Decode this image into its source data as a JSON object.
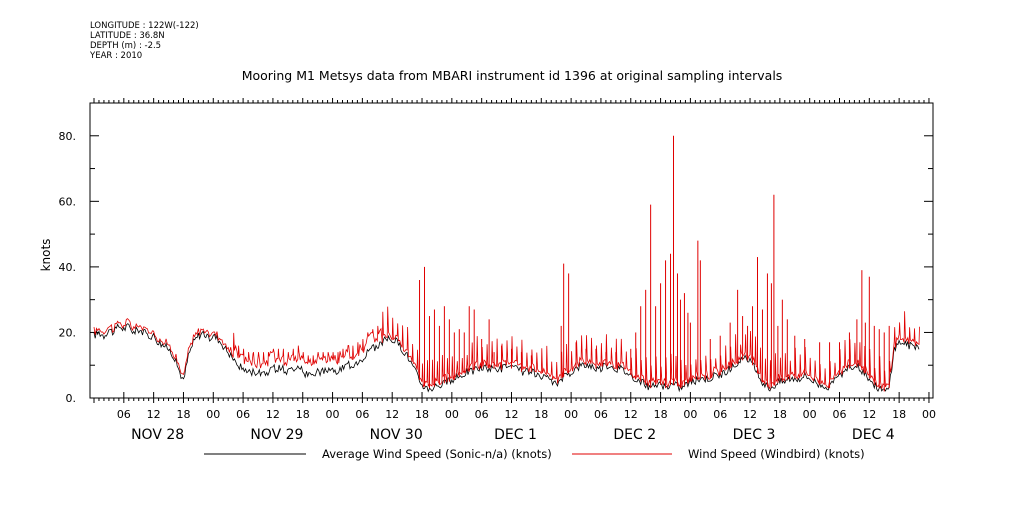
{
  "header": {
    "longitude": "LONGITUDE : 122W(-122)",
    "latitude": "LATITUDE : 36.8N",
    "depth": "DEPTH (m) : -2.5",
    "year": "YEAR : 2010"
  },
  "chart_data": {
    "type": "line",
    "title": "Mooring M1 Metsys data from MBARI instrument id 1396 at original sampling intervals",
    "ylabel": "knots",
    "xlabel": "",
    "ylim": [
      0,
      90
    ],
    "xlim_hours": [
      0,
      166
    ],
    "yticks": [
      {
        "value": 0,
        "label": "0."
      },
      {
        "value": 20,
        "label": "20."
      },
      {
        "value": 40,
        "label": "40."
      },
      {
        "value": 60,
        "label": "60."
      },
      {
        "value": 80,
        "label": "80."
      }
    ],
    "hour_ticks": [
      {
        "t": 6,
        "label": "06"
      },
      {
        "t": 12,
        "label": "12"
      },
      {
        "t": 18,
        "label": "18"
      },
      {
        "t": 24,
        "label": "00"
      },
      {
        "t": 30,
        "label": "06"
      },
      {
        "t": 36,
        "label": "12"
      },
      {
        "t": 42,
        "label": "18"
      },
      {
        "t": 48,
        "label": "00"
      },
      {
        "t": 54,
        "label": "06"
      },
      {
        "t": 60,
        "label": "12"
      },
      {
        "t": 66,
        "label": "18"
      },
      {
        "t": 72,
        "label": "00"
      },
      {
        "t": 78,
        "label": "06"
      },
      {
        "t": 84,
        "label": "12"
      },
      {
        "t": 90,
        "label": "18"
      },
      {
        "t": 96,
        "label": "00"
      },
      {
        "t": 102,
        "label": "06"
      },
      {
        "t": 108,
        "label": "12"
      },
      {
        "t": 114,
        "label": "18"
      },
      {
        "t": 120,
        "label": "00"
      },
      {
        "t": 126,
        "label": "06"
      },
      {
        "t": 132,
        "label": "12"
      },
      {
        "t": 138,
        "label": "18"
      },
      {
        "t": 144,
        "label": "00"
      },
      {
        "t": 150,
        "label": "06"
      },
      {
        "t": 156,
        "label": "12"
      },
      {
        "t": 162,
        "label": "18"
      },
      {
        "t": 168,
        "label": "00"
      }
    ],
    "day_labels": [
      {
        "t": 12,
        "label": "NOV 28"
      },
      {
        "t": 36,
        "label": "NOV 29"
      },
      {
        "t": 60,
        "label": "NOV 30"
      },
      {
        "t": 84,
        "label": "DEC  1"
      },
      {
        "t": 108,
        "label": "DEC  2"
      },
      {
        "t": 132,
        "label": "DEC  3"
      },
      {
        "t": 156,
        "label": "DEC  4"
      }
    ],
    "series": [
      {
        "name": "Average Wind Speed (Sonic-n/a) (knots)",
        "color": "#000000",
        "baseline_knots": [
          [
            0,
            19
          ],
          [
            1,
            20
          ],
          [
            2,
            19
          ],
          [
            3,
            21
          ],
          [
            4,
            20
          ],
          [
            5,
            22
          ],
          [
            6,
            21
          ],
          [
            7,
            22
          ],
          [
            8,
            20
          ],
          [
            9,
            21
          ],
          [
            10,
            20
          ],
          [
            11,
            19
          ],
          [
            12,
            19
          ],
          [
            13,
            17
          ],
          [
            14,
            16
          ],
          [
            15,
            15
          ],
          [
            16,
            13
          ],
          [
            17,
            9
          ],
          [
            18,
            5
          ],
          [
            19,
            13
          ],
          [
            20,
            17
          ],
          [
            21,
            19
          ],
          [
            22,
            20
          ],
          [
            23,
            18
          ],
          [
            24,
            19
          ],
          [
            25,
            18
          ],
          [
            26,
            16
          ],
          [
            27,
            14
          ],
          [
            28,
            12
          ],
          [
            29,
            10
          ],
          [
            30,
            9
          ],
          [
            31,
            8
          ],
          [
            32,
            8
          ],
          [
            33,
            8
          ],
          [
            34,
            8
          ],
          [
            35,
            8
          ],
          [
            36,
            9
          ],
          [
            37,
            9
          ],
          [
            38,
            9
          ],
          [
            39,
            8
          ],
          [
            40,
            9
          ],
          [
            41,
            10
          ],
          [
            42,
            8
          ],
          [
            43,
            7
          ],
          [
            44,
            7
          ],
          [
            45,
            8
          ],
          [
            46,
            8
          ],
          [
            47,
            8
          ],
          [
            48,
            8
          ],
          [
            49,
            8
          ],
          [
            50,
            9
          ],
          [
            51,
            10
          ],
          [
            52,
            10
          ],
          [
            53,
            11
          ],
          [
            54,
            12
          ],
          [
            55,
            14
          ],
          [
            56,
            15
          ],
          [
            57,
            16
          ],
          [
            58,
            17
          ],
          [
            59,
            18
          ],
          [
            60,
            18
          ],
          [
            61,
            17
          ],
          [
            62,
            15
          ],
          [
            63,
            13
          ],
          [
            64,
            10
          ],
          [
            65,
            7
          ],
          [
            66,
            4
          ],
          [
            67,
            3
          ],
          [
            68,
            3
          ],
          [
            69,
            4
          ],
          [
            70,
            4
          ],
          [
            71,
            5
          ],
          [
            72,
            5
          ],
          [
            73,
            6
          ],
          [
            74,
            7
          ],
          [
            75,
            8
          ],
          [
            76,
            8
          ],
          [
            77,
            9
          ],
          [
            78,
            9
          ],
          [
            79,
            9
          ],
          [
            80,
            9
          ],
          [
            81,
            9
          ],
          [
            82,
            9
          ],
          [
            83,
            10
          ],
          [
            84,
            9
          ],
          [
            85,
            9
          ],
          [
            86,
            8
          ],
          [
            87,
            8
          ],
          [
            88,
            8
          ],
          [
            89,
            7
          ],
          [
            90,
            6
          ],
          [
            91,
            6
          ],
          [
            92,
            5
          ],
          [
            93,
            4
          ],
          [
            94,
            6
          ],
          [
            95,
            7
          ],
          [
            96,
            8
          ],
          [
            97,
            9
          ],
          [
            98,
            10
          ],
          [
            99,
            10
          ],
          [
            100,
            10
          ],
          [
            101,
            9
          ],
          [
            102,
            9
          ],
          [
            103,
            10
          ],
          [
            104,
            10
          ],
          [
            105,
            9
          ],
          [
            106,
            9
          ],
          [
            107,
            8
          ],
          [
            108,
            7
          ],
          [
            109,
            6
          ],
          [
            110,
            5
          ],
          [
            111,
            4
          ],
          [
            112,
            3
          ],
          [
            113,
            4
          ],
          [
            114,
            4
          ],
          [
            115,
            3
          ],
          [
            116,
            4
          ],
          [
            117,
            4
          ],
          [
            118,
            3
          ],
          [
            119,
            4
          ],
          [
            120,
            5
          ],
          [
            121,
            5
          ],
          [
            122,
            6
          ],
          [
            123,
            6
          ],
          [
            124,
            6
          ],
          [
            125,
            7
          ],
          [
            126,
            7
          ],
          [
            127,
            8
          ],
          [
            128,
            9
          ],
          [
            129,
            10
          ],
          [
            130,
            11
          ],
          [
            131,
            12
          ],
          [
            132,
            11
          ],
          [
            133,
            9
          ],
          [
            134,
            6
          ],
          [
            135,
            4
          ],
          [
            136,
            3
          ],
          [
            137,
            4
          ],
          [
            138,
            5
          ],
          [
            139,
            5
          ],
          [
            140,
            6
          ],
          [
            141,
            6
          ],
          [
            142,
            6
          ],
          [
            143,
            7
          ],
          [
            144,
            6
          ],
          [
            145,
            5
          ],
          [
            146,
            4
          ],
          [
            147,
            4
          ],
          [
            148,
            3
          ],
          [
            149,
            5
          ],
          [
            150,
            7
          ],
          [
            151,
            8
          ],
          [
            152,
            9
          ],
          [
            153,
            10
          ],
          [
            154,
            9
          ],
          [
            155,
            8
          ],
          [
            156,
            6
          ],
          [
            157,
            4
          ],
          [
            158,
            3
          ],
          [
            159,
            2
          ],
          [
            160,
            3
          ],
          [
            161,
            15
          ],
          [
            162,
            17
          ],
          [
            163,
            17
          ],
          [
            164,
            16
          ],
          [
            165,
            16
          ]
        ]
      },
      {
        "name": "Wind Speed (Windbird) (knots)",
        "color": "#e00000",
        "spikes": [
          [
            65.5,
            36
          ],
          [
            66.5,
            40
          ],
          [
            67.5,
            25
          ],
          [
            68.5,
            27
          ],
          [
            69.5,
            22
          ],
          [
            70.5,
            28
          ],
          [
            71.5,
            24
          ],
          [
            72.5,
            20
          ],
          [
            73.5,
            21
          ],
          [
            74.5,
            20
          ],
          [
            75.5,
            28
          ],
          [
            76.5,
            27
          ],
          [
            78,
            18
          ],
          [
            79.5,
            24
          ],
          [
            80.5,
            14
          ],
          [
            82,
            16
          ],
          [
            84,
            15
          ],
          [
            86,
            14
          ],
          [
            88,
            13
          ],
          [
            94,
            22
          ],
          [
            94.5,
            41
          ],
          [
            95.5,
            38
          ],
          [
            97,
            17
          ],
          [
            99,
            15
          ],
          [
            101,
            15
          ],
          [
            103,
            14
          ],
          [
            105,
            14
          ],
          [
            108,
            15
          ],
          [
            109,
            20
          ],
          [
            110,
            28
          ],
          [
            111,
            33
          ],
          [
            112,
            59
          ],
          [
            113,
            28
          ],
          [
            114,
            35
          ],
          [
            115,
            42
          ],
          [
            116,
            44
          ],
          [
            116.6,
            80
          ],
          [
            117.4,
            38
          ],
          [
            118,
            30
          ],
          [
            118.8,
            32
          ],
          [
            119.5,
            26
          ],
          [
            120,
            23
          ],
          [
            121.5,
            48
          ],
          [
            122,
            42
          ],
          [
            124,
            18
          ],
          [
            126,
            19
          ],
          [
            128,
            23
          ],
          [
            129.5,
            33
          ],
          [
            130.5,
            25
          ],
          [
            131.5,
            22
          ],
          [
            132.5,
            28
          ],
          [
            133.5,
            43
          ],
          [
            134.5,
            27
          ],
          [
            135.5,
            38
          ],
          [
            136.3,
            35
          ],
          [
            136.8,
            62
          ],
          [
            137.6,
            22
          ],
          [
            138.5,
            30
          ],
          [
            139.5,
            24
          ],
          [
            141,
            19
          ],
          [
            143,
            18
          ],
          [
            146,
            17
          ],
          [
            148,
            17
          ],
          [
            150,
            17
          ],
          [
            152,
            20
          ],
          [
            153.5,
            24
          ],
          [
            154.5,
            39
          ],
          [
            155.2,
            23
          ],
          [
            156,
            37
          ],
          [
            157,
            22
          ],
          [
            158,
            21
          ],
          [
            159,
            20
          ],
          [
            160,
            22
          ]
        ]
      }
    ]
  }
}
